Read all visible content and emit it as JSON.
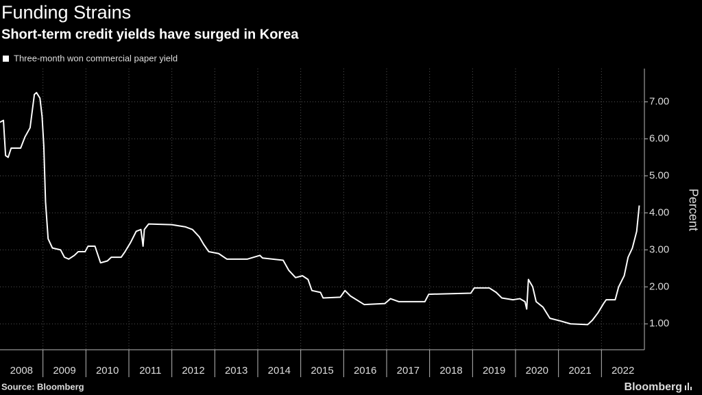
{
  "chart_data": {
    "type": "line",
    "title": "Funding Strains",
    "subtitle": "Short-term credit yields have surged in Korea",
    "y_label": "Percent",
    "source": "Source: Bloomberg",
    "brand": "Bloomberg",
    "grid": true,
    "xlim": [
      2008,
      2023
    ],
    "xticks": [
      2008,
      2009,
      2010,
      2011,
      2012,
      2013,
      2014,
      2015,
      2016,
      2017,
      2018,
      2019,
      2020,
      2021,
      2022
    ],
    "ylim": [
      0.3,
      7.9
    ],
    "yticks": [
      {
        "value": 1,
        "label": "1.00"
      },
      {
        "value": 2,
        "label": "2.00"
      },
      {
        "value": 3,
        "label": "3.00"
      },
      {
        "value": 4,
        "label": "4.00"
      },
      {
        "value": 5,
        "label": "5.00"
      },
      {
        "value": 6,
        "label": "6.00"
      },
      {
        "value": 7,
        "label": "7.00"
      }
    ],
    "series": [
      {
        "name": "Three-month won commercial paper yield",
        "color": "#ffffff",
        "x": [
          2008.0,
          2008.08,
          2008.13,
          2008.19,
          2008.26,
          2008.48,
          2008.58,
          2008.7,
          2008.8,
          2008.85,
          2008.93,
          2008.98,
          2009.02,
          2009.06,
          2009.09,
          2009.12,
          2009.22,
          2009.41,
          2009.5,
          2009.6,
          2009.73,
          2009.82,
          2009.98,
          2010.05,
          2010.21,
          2010.34,
          2010.5,
          2010.59,
          2010.82,
          2010.91,
          2011.04,
          2011.17,
          2011.28,
          2011.33,
          2011.36,
          2011.46,
          2012.0,
          2012.32,
          2012.48,
          2012.64,
          2012.74,
          2012.86,
          2013.09,
          2013.28,
          2013.76,
          2014.05,
          2014.11,
          2014.59,
          2014.72,
          2014.88,
          2015.04,
          2015.17,
          2015.26,
          2015.46,
          2015.52,
          2015.92,
          2016.03,
          2016.16,
          2016.48,
          2016.96,
          2017.09,
          2017.28,
          2017.89,
          2017.98,
          2018.96,
          2019.04,
          2019.39,
          2019.55,
          2019.68,
          2019.94,
          2020.1,
          2020.22,
          2020.26,
          2020.3,
          2020.4,
          2020.48,
          2020.64,
          2020.8,
          2021.04,
          2021.28,
          2021.68,
          2021.79,
          2021.92,
          2022.05,
          2022.11,
          2022.32,
          2022.4,
          2022.53,
          2022.62,
          2022.72,
          2022.82,
          2022.88
        ],
        "values": [
          6.45,
          6.5,
          5.55,
          5.5,
          5.75,
          5.75,
          6.05,
          6.3,
          7.2,
          7.25,
          7.1,
          6.6,
          5.8,
          4.3,
          3.8,
          3.3,
          3.05,
          3.0,
          2.8,
          2.75,
          2.85,
          2.95,
          2.95,
          3.1,
          3.1,
          2.65,
          2.7,
          2.8,
          2.8,
          2.95,
          3.2,
          3.5,
          3.55,
          3.1,
          3.55,
          3.7,
          3.68,
          3.62,
          3.55,
          3.35,
          3.15,
          2.95,
          2.9,
          2.75,
          2.75,
          2.85,
          2.78,
          2.72,
          2.45,
          2.25,
          2.3,
          2.2,
          1.9,
          1.85,
          1.7,
          1.72,
          1.9,
          1.75,
          1.52,
          1.55,
          1.68,
          1.6,
          1.6,
          1.8,
          1.83,
          1.97,
          1.97,
          1.85,
          1.7,
          1.65,
          1.68,
          1.6,
          1.4,
          2.2,
          2.0,
          1.6,
          1.45,
          1.15,
          1.08,
          1.0,
          0.98,
          1.1,
          1.3,
          1.55,
          1.65,
          1.65,
          2.0,
          2.3,
          2.8,
          3.05,
          3.5,
          4.2
        ]
      }
    ]
  }
}
